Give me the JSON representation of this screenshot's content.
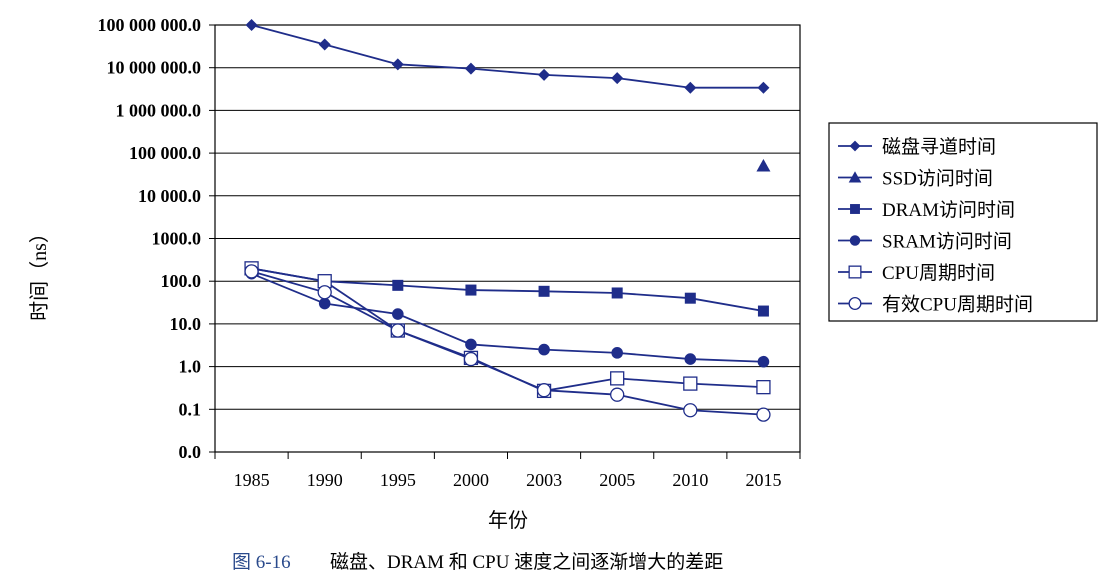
{
  "chart_data": {
    "type": "line",
    "categories": [
      "1985",
      "1990",
      "1995",
      "2000",
      "2003",
      "2005",
      "2010",
      "2015"
    ],
    "y_scale": "log",
    "y_ticks": [
      "100 000 000.0",
      "10 000 000.0",
      "1 000 000.0",
      "100 000.0",
      "10 000.0",
      "1000.0",
      "100.0",
      "10.0",
      "1.0",
      "0.1",
      "0.0"
    ],
    "ylabel": "时间（ns）",
    "xlabel": "年份",
    "legend_position": "right",
    "grid": "horizontal",
    "series": [
      {
        "name": "磁盘寻道时间",
        "marker": "diamond-filled",
        "color": "#1f2d8a",
        "values": [
          100000000,
          35000000,
          12000000,
          9500000,
          6800000,
          5700000,
          3400000,
          3400000
        ]
      },
      {
        "name": "SSD访问时间",
        "marker": "triangle-filled",
        "color": "#1f2d8a",
        "values": [
          null,
          null,
          null,
          null,
          null,
          null,
          null,
          50000
        ]
      },
      {
        "name": "DRAM访问时间",
        "marker": "square-filled",
        "color": "#1f2d8a",
        "values": [
          200,
          100,
          80,
          62,
          58,
          53,
          40,
          20
        ]
      },
      {
        "name": "SRAM访问时间",
        "marker": "circle-filled",
        "color": "#1f2d8a",
        "values": [
          150,
          30,
          17,
          3.3,
          2.5,
          2.1,
          1.5,
          1.3
        ]
      },
      {
        "name": "CPU周期时间",
        "marker": "square-open",
        "color": "#1f2d8a",
        "values": [
          200,
          100,
          7,
          1.6,
          0.27,
          0.53,
          0.4,
          0.33
        ]
      },
      {
        "name": "有效CPU周期时间",
        "marker": "circle-open",
        "color": "#1f2d8a",
        "values": [
          170,
          55,
          7,
          1.5,
          0.28,
          0.22,
          0.095,
          0.075
        ]
      }
    ]
  },
  "caption": {
    "number": "图 6-16",
    "text": "磁盘、DRAM 和 CPU 速度之间逐渐增大的差距"
  }
}
